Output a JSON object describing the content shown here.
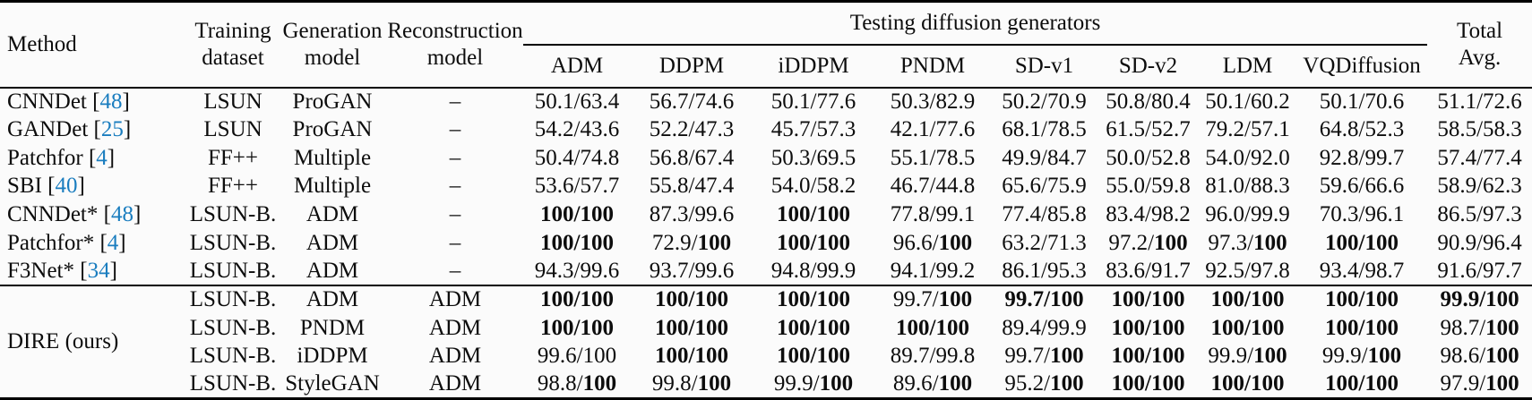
{
  "header": {
    "method": "Method",
    "training": [
      "Training",
      "dataset"
    ],
    "generation": [
      "Generation",
      "model"
    ],
    "reconstruction": [
      "Reconstruction",
      "model"
    ],
    "group": "Testing diffusion generators",
    "generators": [
      "ADM",
      "DDPM",
      "iDDPM",
      "PNDM",
      "SD-v1",
      "SD-v2",
      "LDM",
      "VQDiffusion"
    ],
    "total": [
      "Total",
      "Avg."
    ]
  },
  "rows": [
    {
      "method": "CNNDet",
      "cite": "48",
      "training": "LSUN",
      "generation": "ProGAN",
      "reconstruction": "–",
      "scores": [
        [
          "50.1",
          false,
          "63.4",
          false
        ],
        [
          "56.7",
          false,
          "74.6",
          false
        ],
        [
          "50.1",
          false,
          "77.6",
          false
        ],
        [
          "50.3",
          false,
          "82.9",
          false
        ],
        [
          "50.2",
          false,
          "70.9",
          false
        ],
        [
          "50.8",
          false,
          "80.4",
          false
        ],
        [
          "50.1",
          false,
          "60.2",
          false
        ],
        [
          "50.1",
          false,
          "70.6",
          false
        ],
        [
          "51.1",
          false,
          "72.6",
          false
        ]
      ]
    },
    {
      "method": "GANDet",
      "cite": "25",
      "training": "LSUN",
      "generation": "ProGAN",
      "reconstruction": "–",
      "scores": [
        [
          "54.2",
          false,
          "43.6",
          false
        ],
        [
          "52.2",
          false,
          "47.3",
          false
        ],
        [
          "45.7",
          false,
          "57.3",
          false
        ],
        [
          "42.1",
          false,
          "77.6",
          false
        ],
        [
          "68.1",
          false,
          "78.5",
          false
        ],
        [
          "61.5",
          false,
          "52.7",
          false
        ],
        [
          "79.2",
          false,
          "57.1",
          false
        ],
        [
          "64.8",
          false,
          "52.3",
          false
        ],
        [
          "58.5",
          false,
          "58.3",
          false
        ]
      ]
    },
    {
      "method": "Patchfor",
      "cite": "4",
      "training": "FF++",
      "generation": "Multiple",
      "reconstruction": "–",
      "scores": [
        [
          "50.4",
          false,
          "74.8",
          false
        ],
        [
          "56.8",
          false,
          "67.4",
          false
        ],
        [
          "50.3",
          false,
          "69.5",
          false
        ],
        [
          "55.1",
          false,
          "78.5",
          false
        ],
        [
          "49.9",
          false,
          "84.7",
          false
        ],
        [
          "50.0",
          false,
          "52.8",
          false
        ],
        [
          "54.0",
          false,
          "92.0",
          false
        ],
        [
          "92.8",
          false,
          "99.7",
          false
        ],
        [
          "57.4",
          false,
          "77.4",
          false
        ]
      ]
    },
    {
      "method": "SBI",
      "cite": "40",
      "training": "FF++",
      "generation": "Multiple",
      "reconstruction": "–",
      "scores": [
        [
          "53.6",
          false,
          "57.7",
          false
        ],
        [
          "55.8",
          false,
          "47.4",
          false
        ],
        [
          "54.0",
          false,
          "58.2",
          false
        ],
        [
          "46.7",
          false,
          "44.8",
          false
        ],
        [
          "65.6",
          false,
          "75.9",
          false
        ],
        [
          "55.0",
          false,
          "59.8",
          false
        ],
        [
          "81.0",
          false,
          "88.3",
          false
        ],
        [
          "59.6",
          false,
          "66.6",
          false
        ],
        [
          "58.9",
          false,
          "62.3",
          false
        ]
      ]
    },
    {
      "method": "CNNDet*",
      "cite": "48",
      "training": "LSUN-B.",
      "generation": "ADM",
      "reconstruction": "–",
      "scores": [
        [
          "100",
          true,
          "100",
          true
        ],
        [
          "87.3",
          false,
          "99.6",
          false
        ],
        [
          "100",
          true,
          "100",
          true
        ],
        [
          "77.8",
          false,
          "99.1",
          false
        ],
        [
          "77.4",
          false,
          "85.8",
          false
        ],
        [
          "83.4",
          false,
          "98.2",
          false
        ],
        [
          "96.0",
          false,
          "99.9",
          false
        ],
        [
          "70.3",
          false,
          "96.1",
          false
        ],
        [
          "86.5",
          false,
          "97.3",
          false
        ]
      ]
    },
    {
      "method": "Patchfor*",
      "cite": "4",
      "training": "LSUN-B.",
      "generation": "ADM",
      "reconstruction": "–",
      "scores": [
        [
          "100",
          true,
          "100",
          true
        ],
        [
          "72.9",
          false,
          "100",
          true
        ],
        [
          "100",
          true,
          "100",
          true
        ],
        [
          "96.6",
          false,
          "100",
          true
        ],
        [
          "63.2",
          false,
          "71.3",
          false
        ],
        [
          "97.2",
          false,
          "100",
          true
        ],
        [
          "97.3",
          false,
          "100",
          true
        ],
        [
          "100",
          true,
          "100",
          true
        ],
        [
          "90.9",
          false,
          "96.4",
          false
        ]
      ]
    },
    {
      "method": "F3Net*",
      "cite": "34",
      "training": "LSUN-B.",
      "generation": "ADM",
      "reconstruction": "–",
      "scores": [
        [
          "94.3",
          false,
          "99.6",
          false
        ],
        [
          "93.7",
          false,
          "99.6",
          false
        ],
        [
          "94.8",
          false,
          "99.9",
          false
        ],
        [
          "94.1",
          false,
          "99.2",
          false
        ],
        [
          "86.1",
          false,
          "95.3",
          false
        ],
        [
          "83.6",
          false,
          "91.7",
          false
        ],
        [
          "92.5",
          false,
          "97.8",
          false
        ],
        [
          "93.4",
          false,
          "98.7",
          false
        ],
        [
          "91.6",
          false,
          "97.7",
          false
        ]
      ]
    }
  ],
  "dire": {
    "label": "DIRE (ours)",
    "rows": [
      {
        "training": "LSUN-B.",
        "generation": "ADM",
        "reconstruction": "ADM",
        "scores": [
          [
            "100",
            true,
            "100",
            true
          ],
          [
            "100",
            true,
            "100",
            true
          ],
          [
            "100",
            true,
            "100",
            true
          ],
          [
            "99.7",
            false,
            "100",
            true
          ],
          [
            "99.7",
            true,
            "100",
            true
          ],
          [
            "100",
            true,
            "100",
            true
          ],
          [
            "100",
            true,
            "100",
            true
          ],
          [
            "100",
            true,
            "100",
            true
          ],
          [
            "99.9",
            true,
            "100",
            true
          ]
        ]
      },
      {
        "training": "LSUN-B.",
        "generation": "PNDM",
        "reconstruction": "ADM",
        "scores": [
          [
            "100",
            true,
            "100",
            true
          ],
          [
            "100",
            true,
            "100",
            true
          ],
          [
            "100",
            true,
            "100",
            true
          ],
          [
            "100",
            true,
            "100",
            true
          ],
          [
            "89.4",
            false,
            "99.9",
            false
          ],
          [
            "100",
            true,
            "100",
            true
          ],
          [
            "100",
            true,
            "100",
            true
          ],
          [
            "100",
            true,
            "100",
            true
          ],
          [
            "98.7",
            false,
            "100",
            true
          ]
        ]
      },
      {
        "training": "LSUN-B.",
        "generation": "iDDPM",
        "reconstruction": "ADM",
        "scores": [
          [
            "99.6",
            false,
            "100",
            false
          ],
          [
            "100",
            true,
            "100",
            true
          ],
          [
            "100",
            true,
            "100",
            true
          ],
          [
            "89.7",
            false,
            "99.8",
            false
          ],
          [
            "99.7",
            false,
            "100",
            true
          ],
          [
            "100",
            true,
            "100",
            true
          ],
          [
            "99.9",
            false,
            "100",
            true
          ],
          [
            "99.9",
            false,
            "100",
            true
          ],
          [
            "98.6",
            false,
            "100",
            true
          ]
        ]
      },
      {
        "training": "LSUN-B.",
        "generation": "StyleGAN",
        "reconstruction": "ADM",
        "scores": [
          [
            "98.8",
            false,
            "100",
            true
          ],
          [
            "99.8",
            false,
            "100",
            true
          ],
          [
            "99.9",
            false,
            "100",
            true
          ],
          [
            "89.6",
            false,
            "100",
            true
          ],
          [
            "95.2",
            false,
            "100",
            true
          ],
          [
            "100",
            true,
            "100",
            true
          ],
          [
            "100",
            true,
            "100",
            true
          ],
          [
            "100",
            true,
            "100",
            true
          ],
          [
            "97.9",
            false,
            "100",
            true
          ]
        ]
      }
    ]
  },
  "colors": {
    "citation_blue": "#1a7dbf",
    "text": "#0d0d0d",
    "rule": "#000000",
    "background": "#fbfbfb"
  }
}
